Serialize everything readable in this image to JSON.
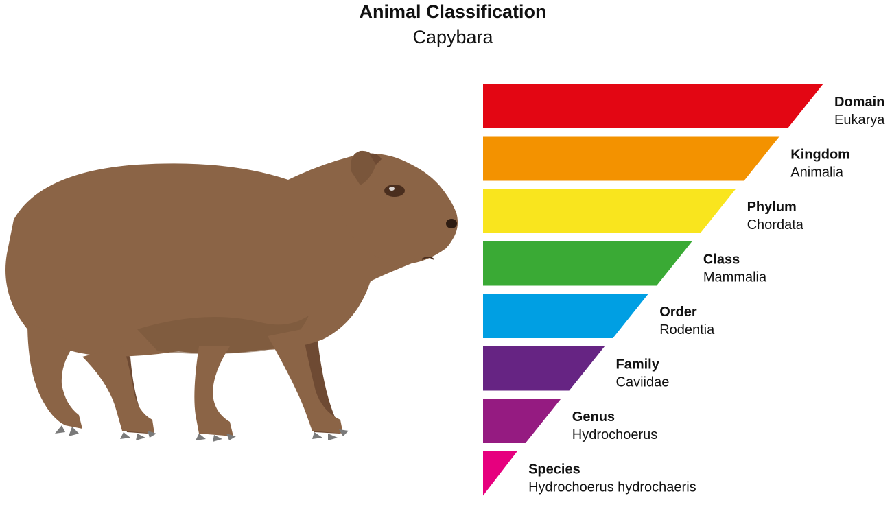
{
  "title": "Animal Classification",
  "subtitle": "Capybara",
  "ranks": [
    {
      "name": "Domain",
      "value": "Eukarya",
      "color": "#E30613"
    },
    {
      "name": "Kingdom",
      "value": "Animalia",
      "color": "#F39200"
    },
    {
      "name": "Phylum",
      "value": "Chordata",
      "color": "#F9E51E"
    },
    {
      "name": "Class",
      "value": "Mammalia",
      "color": "#3AAA35"
    },
    {
      "name": "Order",
      "value": "Rodentia",
      "color": "#009FE3"
    },
    {
      "name": "Family",
      "value": "Caviidae",
      "color": "#662483"
    },
    {
      "name": "Genus",
      "value": "Hydrochoerus",
      "color": "#951B81"
    },
    {
      "name": "Species",
      "value": "Hydrochoerus hydrochaeris",
      "color": "#E6007E"
    }
  ],
  "colors": {
    "fur": "#8B6446",
    "fur_dark": "#6E4A33",
    "claw": "#7A7A7A"
  }
}
